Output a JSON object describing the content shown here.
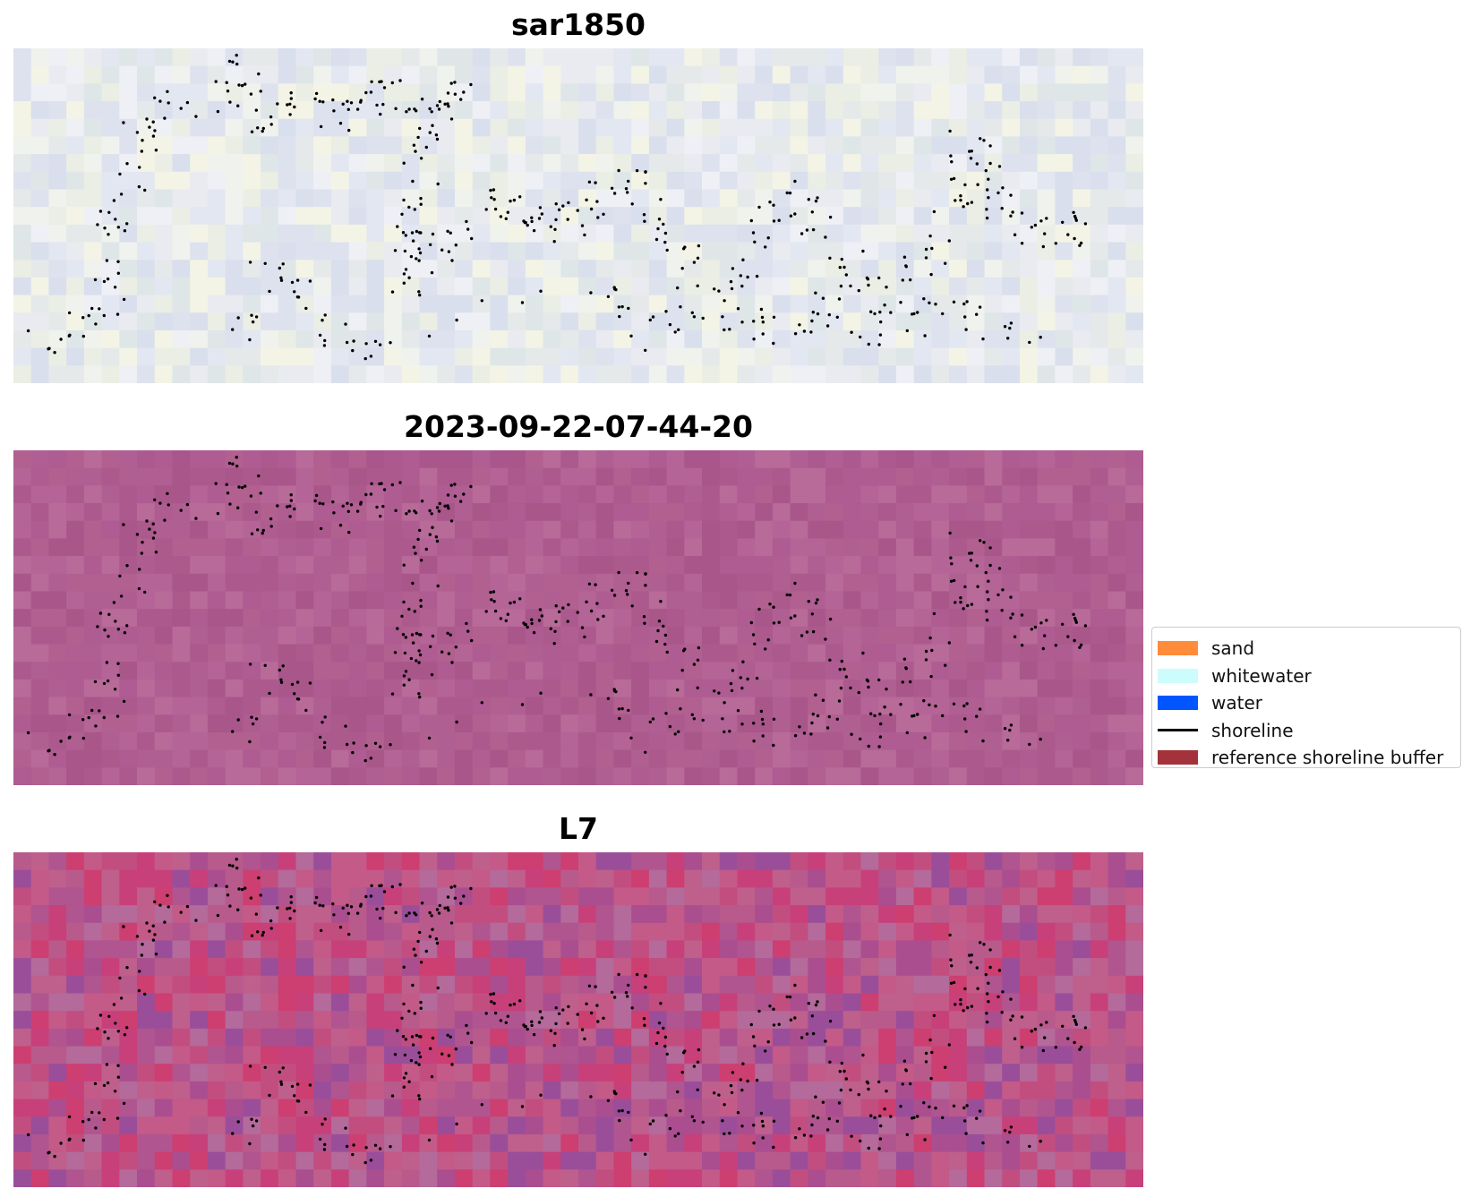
{
  "panels": [
    {
      "title": "sar1850",
      "palette": [
        "#e6e9ea",
        "#e3e7f1",
        "#dde2ee",
        "#ebeee4",
        "#f0f2ed",
        "#d9dfec",
        "#e9ebf0",
        "#f3f4e6",
        "#dfe6e8",
        "#eef0f6"
      ]
    },
    {
      "title": "2023-09-22-07-44-20",
      "palette": [
        "#b05f93",
        "#ac5a8e",
        "#b46496",
        "#a9568b",
        "#b1608f",
        "#b86a99",
        "#ae5c91"
      ]
    },
    {
      "title": "L7",
      "palette": [
        "#b85a8c",
        "#c24e80",
        "#aa4e90",
        "#c8407a",
        "#b46a9a",
        "#9a4e9a",
        "#bf5f8c",
        "#cc3f70",
        "#b0558f",
        "#c45a88"
      ]
    }
  ],
  "legend": {
    "items": [
      {
        "label": "sand",
        "type": "patch",
        "color": "#ff8c3a"
      },
      {
        "label": "whitewater",
        "type": "patch",
        "color": "#cdfcfc"
      },
      {
        "label": "water",
        "type": "patch",
        "color": "#0055ff"
      },
      {
        "label": "shoreline",
        "type": "line",
        "color": "#000000"
      },
      {
        "label": "reference shoreline buffer",
        "type": "patch",
        "color": "#a3323a"
      }
    ]
  }
}
